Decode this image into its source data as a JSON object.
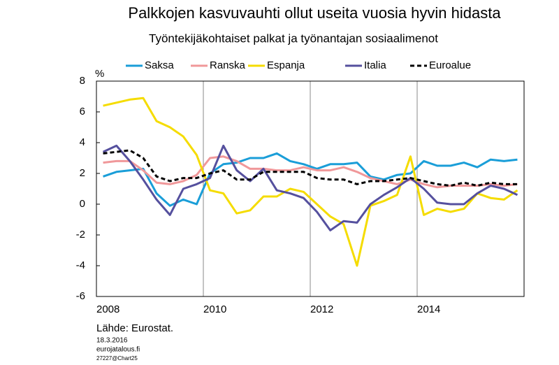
{
  "chart_data": {
    "type": "line",
    "title": "Palkkojen kasvuvauhti ollut useita vuosia hyvin hidasta",
    "subtitle": "Työntekijäkohtaiset palkat ja työnantajan sosiaalimenot",
    "y_unit": "%",
    "source": "Lähde: Eurostat.",
    "footer": [
      "18.3.2016",
      "eurojatalous.fi",
      "27227@Chart25"
    ],
    "x": [
      2008.125,
      2008.375,
      2008.625,
      2008.875,
      2009.125,
      2009.375,
      2009.625,
      2009.875,
      2010.125,
      2010.375,
      2010.625,
      2010.875,
      2011.125,
      2011.375,
      2011.625,
      2011.875,
      2012.125,
      2012.375,
      2012.625,
      2012.875,
      2013.125,
      2013.375,
      2013.625,
      2013.875,
      2014.125,
      2014.375,
      2014.625,
      2014.875,
      2015.125,
      2015.375,
      2015.625,
      2015.875
    ],
    "xlim": [
      2008,
      2016
    ],
    "xticks": [
      2008,
      2010,
      2012,
      2014
    ],
    "ylim": [
      -6,
      8
    ],
    "yticks": [
      -6,
      -4,
      -2,
      0,
      2,
      4,
      6,
      8
    ],
    "grid": "x",
    "legend": "top",
    "series": [
      {
        "name": "Saksa",
        "color": "#1a9ed8",
        "style": "solid",
        "values": [
          1.8,
          2.1,
          2.2,
          2.3,
          0.7,
          -0.1,
          0.3,
          0.0,
          2.0,
          2.6,
          2.7,
          3.0,
          3.0,
          3.3,
          2.8,
          2.6,
          2.3,
          2.6,
          2.6,
          2.7,
          1.8,
          1.6,
          1.9,
          2.0,
          2.8,
          2.5,
          2.5,
          2.7,
          2.4,
          2.9,
          2.8,
          2.9
        ]
      },
      {
        "name": "Ranska",
        "color": "#f0989a",
        "style": "solid",
        "values": [
          2.7,
          2.8,
          2.8,
          2.2,
          1.4,
          1.3,
          1.5,
          1.9,
          3.0,
          3.1,
          2.8,
          2.3,
          2.3,
          2.2,
          2.2,
          2.4,
          2.2,
          2.2,
          2.4,
          2.1,
          1.7,
          1.5,
          1.3,
          1.6,
          1.3,
          1.1,
          1.2,
          1.2,
          1.2,
          1.3,
          1.2,
          1.3
        ]
      },
      {
        "name": "Espanja",
        "color": "#f5dc00",
        "style": "solid",
        "values": [
          6.4,
          6.6,
          6.8,
          6.9,
          5.4,
          5.0,
          4.4,
          3.2,
          0.9,
          0.7,
          -0.6,
          -0.4,
          0.5,
          0.5,
          1.0,
          0.8,
          0.0,
          -0.8,
          -1.3,
          -4.0,
          -0.1,
          0.2,
          0.6,
          3.1,
          -0.7,
          -0.3,
          -0.5,
          -0.3,
          0.7,
          0.4,
          0.3,
          0.9
        ]
      },
      {
        "name": "Italia",
        "color": "#55509e",
        "style": "solid",
        "values": [
          3.4,
          3.8,
          2.8,
          1.6,
          0.3,
          -0.7,
          1.0,
          1.3,
          1.7,
          3.8,
          2.2,
          1.5,
          2.3,
          0.9,
          0.7,
          0.4,
          -0.5,
          -1.7,
          -1.1,
          -1.2,
          0.0,
          0.6,
          1.1,
          1.7,
          1.0,
          0.1,
          0.0,
          0.0,
          0.7,
          1.2,
          1.0,
          0.6
        ]
      },
      {
        "name": "Euroalue",
        "color": "#000000",
        "style": "dashed",
        "values": [
          3.3,
          3.4,
          3.5,
          3.0,
          1.8,
          1.5,
          1.7,
          1.7,
          2.0,
          2.2,
          1.6,
          1.6,
          2.1,
          2.1,
          2.1,
          2.1,
          1.7,
          1.6,
          1.6,
          1.3,
          1.5,
          1.5,
          1.6,
          1.7,
          1.5,
          1.3,
          1.2,
          1.4,
          1.2,
          1.4,
          1.3,
          1.3
        ]
      }
    ]
  }
}
